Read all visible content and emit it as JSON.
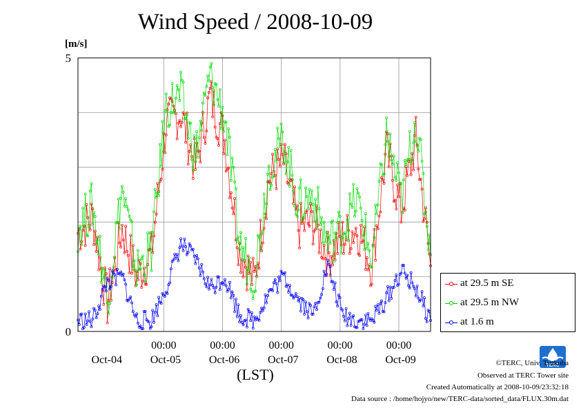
{
  "title": "Wind Speed / 2008-10-09",
  "y_unit": "[m/s]",
  "x_axis_title": "(LST)",
  "credits": {
    "copyright": "©TERC, Univ. Tsukuba",
    "observed": "Observed at TERC Tower site",
    "created": "Created Automatically at 2008-10-09/23:32:18",
    "source": "Data source : /home/hojyo/new/TERC-data/sorted_data/FLUX.30m.dat"
  },
  "logo_text": "TERC",
  "chart_data": {
    "type": "line",
    "title": "Wind Speed / 2008-10-09",
    "ylabel": "[m/s]",
    "xlabel": "(LST)",
    "ylim": [
      0,
      5
    ],
    "xlim_days": [
      3.54,
      9.54
    ],
    "grid": true,
    "legend_position": "bottom-right outside",
    "y_ticks": [
      {
        "value": 0,
        "label": "0"
      },
      {
        "value": 5,
        "label": "5"
      }
    ],
    "x_ticks": [
      {
        "day": 5,
        "time": "00:00",
        "date": "Oct-05"
      },
      {
        "day": 6,
        "time": "00:00",
        "date": "Oct-06"
      },
      {
        "day": 7,
        "time": "00:00",
        "date": "Oct-07"
      },
      {
        "day": 8,
        "time": "00:00",
        "date": "Oct-08"
      },
      {
        "day": 9,
        "time": "00:00",
        "date": "Oct-09"
      }
    ],
    "x_label_extra": {
      "day": 4,
      "date": "Oct-04"
    },
    "series": [
      {
        "name": "at 29.5 m SE",
        "color": "#ff0000",
        "x": [
          3.54,
          3.79,
          4.04,
          4.29,
          4.54,
          4.79,
          5.04,
          5.29,
          5.54,
          5.79,
          6.04,
          6.29,
          6.54,
          6.79,
          7.04,
          7.29,
          7.54,
          7.79,
          8.04,
          8.29,
          8.54,
          8.79,
          9.04,
          9.29,
          9.54
        ],
        "values": [
          1.8,
          2.1,
          0.5,
          1.9,
          1.0,
          1.4,
          3.8,
          4.0,
          3.0,
          4.3,
          3.5,
          1.5,
          0.9,
          2.8,
          3.1,
          1.9,
          2.0,
          1.4,
          1.7,
          1.9,
          1.2,
          3.3,
          2.2,
          3.5,
          1.2
        ]
      },
      {
        "name": "at 29.5 m NW",
        "color": "#00ff00",
        "x": [
          3.54,
          3.79,
          4.04,
          4.29,
          4.54,
          4.79,
          5.04,
          5.29,
          5.54,
          5.79,
          6.04,
          6.29,
          6.54,
          6.79,
          7.04,
          7.29,
          7.54,
          7.79,
          8.04,
          8.29,
          8.54,
          8.79,
          9.04,
          9.29,
          9.54
        ],
        "values": [
          1.9,
          2.3,
          0.6,
          2.6,
          1.1,
          1.5,
          4.1,
          4.3,
          3.2,
          4.7,
          3.9,
          1.6,
          1.0,
          3.0,
          3.5,
          2.3,
          2.5,
          1.6,
          1.9,
          2.4,
          1.3,
          3.6,
          2.4,
          3.9,
          1.4
        ]
      },
      {
        "name": "at 1.6 m",
        "color": "#0000ff",
        "x": [
          3.54,
          3.79,
          4.04,
          4.29,
          4.54,
          4.79,
          5.04,
          5.29,
          5.54,
          5.79,
          6.04,
          6.29,
          6.54,
          6.79,
          7.04,
          7.29,
          7.54,
          7.79,
          8.04,
          8.29,
          8.54,
          8.79,
          9.04,
          9.29,
          9.54
        ],
        "values": [
          0.2,
          0.2,
          0.9,
          1.0,
          0.2,
          0.2,
          0.8,
          1.6,
          1.3,
          0.8,
          1.0,
          0.3,
          0.2,
          0.7,
          1.0,
          0.6,
          0.3,
          1.2,
          0.3,
          0.2,
          0.2,
          0.6,
          1.1,
          0.8,
          0.2
        ]
      }
    ]
  }
}
